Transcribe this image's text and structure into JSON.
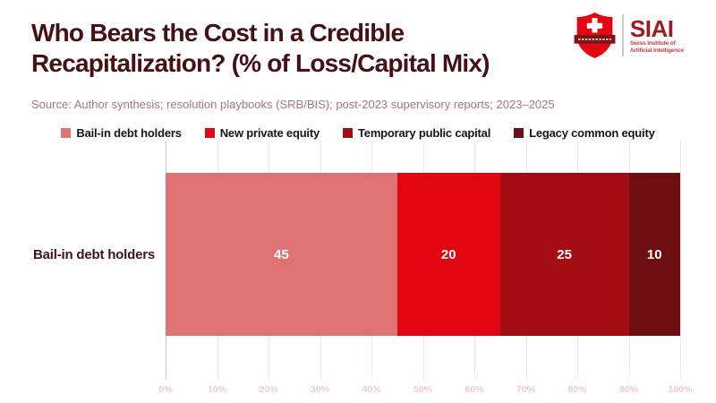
{
  "header": {
    "title_line1": "Who Bears the Cost in a Credible",
    "title_line2": "Recapitalization? (% of Loss/Capital Mix)",
    "source": "Source: Author synthesis; resolution playbooks (SRB/BIS); post-2023 supervisory reports; 2023–2025"
  },
  "logo": {
    "acronym": "SIAI",
    "subtitle_line1": "Swiss Institute of",
    "subtitle_line2": "Artificial Intelligence"
  },
  "chart_data": {
    "type": "bar",
    "orientation": "horizontal",
    "stacked": true,
    "title": "Who Bears the Cost in a Credible Recapitalization? (% of Loss/Capital Mix)",
    "categories": [
      "Bail-in debt holders"
    ],
    "series": [
      {
        "name": "Bail-in debt holders",
        "values": [
          45
        ],
        "color": "#df7373"
      },
      {
        "name": "New private equity",
        "values": [
          20
        ],
        "color": "#e20613"
      },
      {
        "name": "Temporary public capital",
        "values": [
          25
        ],
        "color": "#a40e13"
      },
      {
        "name": "Legacy common equity",
        "values": [
          10
        ],
        "color": "#6e0e13"
      }
    ],
    "xlim": [
      0,
      100
    ],
    "x_ticks": [
      "0%",
      "10%",
      "20%",
      "30%",
      "40%",
      "50%",
      "60%",
      "70%",
      "80%",
      "90%",
      "100%"
    ],
    "xlabel": "",
    "ylabel": "",
    "legend_position": "top",
    "grid": true,
    "value_labels_shown": true
  },
  "colors": {
    "background": "#ffffff",
    "title": "#451114",
    "source_text": "#a57876",
    "legend_text": "#161616",
    "category_label": "#451114",
    "value_label": "#ffffff",
    "tick_label": "#f5caca",
    "gridline": "#fbe6e6",
    "zero_gridline": "#cfc2c2",
    "logo_red": "#e30613",
    "logo_banner": "#7f1316",
    "logo_dark_red": "#9e1c21",
    "logo_subtitle_red": "#bf3c40",
    "logo_divider": "#c9c9c9"
  }
}
